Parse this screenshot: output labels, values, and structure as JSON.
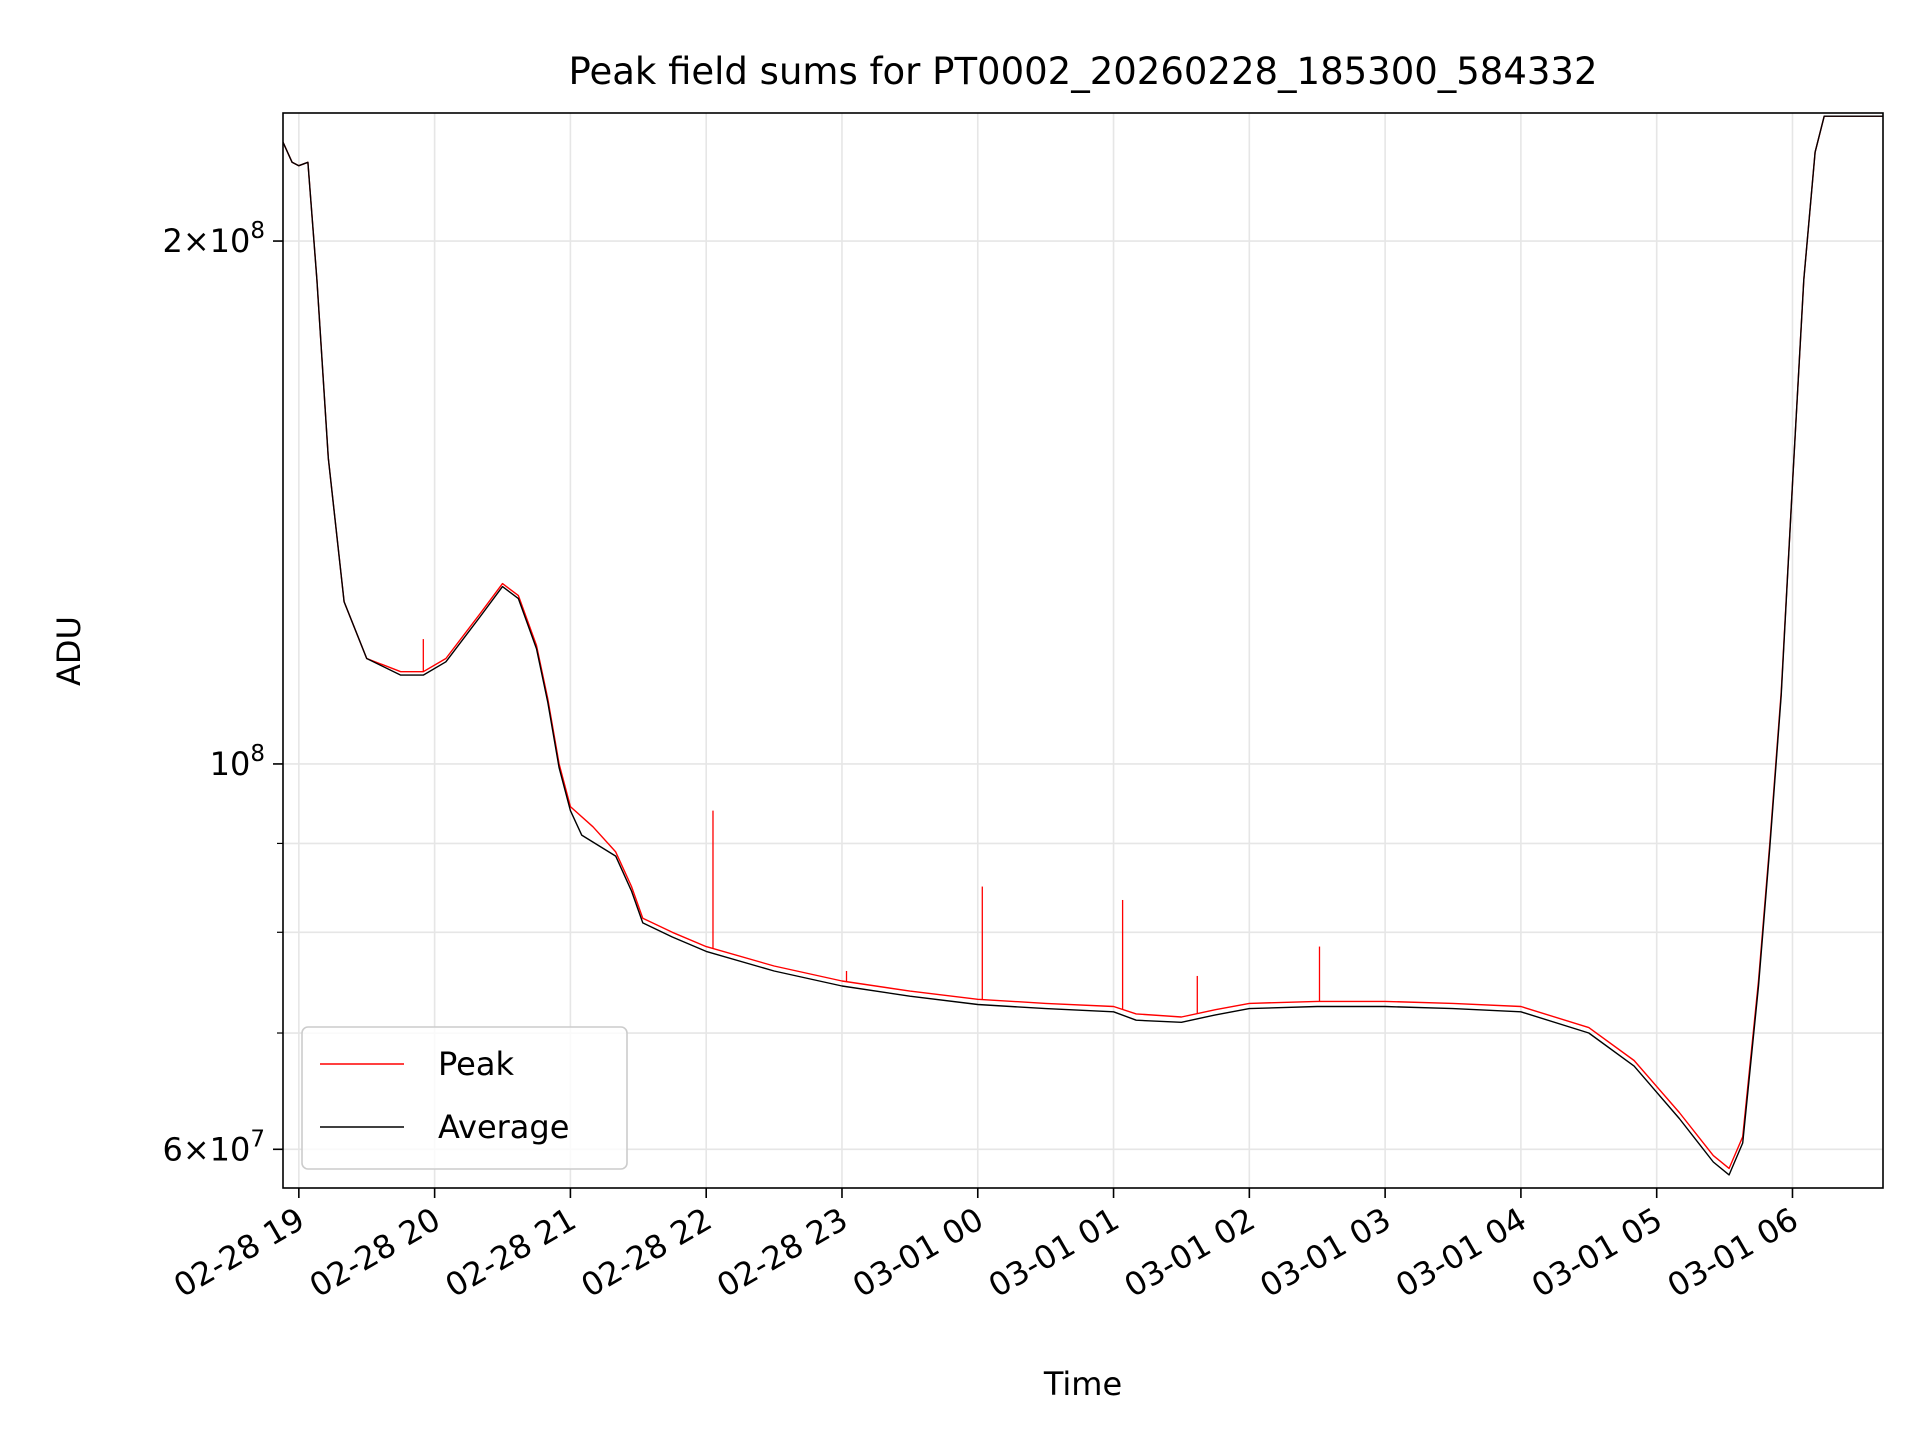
{
  "chart_data": {
    "type": "line",
    "title": "Peak field sums for PT0002_20260228_185300_584332",
    "xlabel": "Time",
    "ylabel": "ADU",
    "y_scale": "log",
    "ylim": [
      57000000,
      237000000
    ],
    "xlim": [
      "2026-02-28 18:53",
      "2026-03-01 06:40"
    ],
    "grid": true,
    "legend_position": "lower-left",
    "x_ticks": [
      {
        "t": "2026-02-28 19:00",
        "label": "02-28 19"
      },
      {
        "t": "2026-02-28 20:00",
        "label": "02-28 20"
      },
      {
        "t": "2026-02-28 21:00",
        "label": "02-28 21"
      },
      {
        "t": "2026-02-28 22:00",
        "label": "02-28 22"
      },
      {
        "t": "2026-02-28 23:00",
        "label": "02-28 23"
      },
      {
        "t": "2026-03-01 00:00",
        "label": "03-01 00"
      },
      {
        "t": "2026-03-01 01:00",
        "label": "03-01 01"
      },
      {
        "t": "2026-03-01 02:00",
        "label": "03-01 02"
      },
      {
        "t": "2026-03-01 03:00",
        "label": "03-01 03"
      },
      {
        "t": "2026-03-01 04:00",
        "label": "03-01 04"
      },
      {
        "t": "2026-03-01 05:00",
        "label": "03-01 05"
      },
      {
        "t": "2026-03-01 06:00",
        "label": "03-01 06"
      }
    ],
    "y_ticks_major": [
      {
        "v": 60000000,
        "base": "6",
        "exp": "7"
      },
      {
        "v": 100000000,
        "base": "",
        "exp": "8"
      },
      {
        "v": 200000000,
        "base": "2",
        "exp": "8"
      }
    ],
    "y_ticks_minor": [
      70000000,
      80000000,
      90000000
    ],
    "series": [
      {
        "name": "Peak",
        "color": "#ff0000",
        "points": [
          [
            "2026-02-28 18:53",
            228000000
          ],
          [
            "2026-02-28 18:57",
            222000000
          ],
          [
            "2026-02-28 19:00",
            221000000
          ],
          [
            "2026-02-28 19:04",
            222000000
          ],
          [
            "2026-02-28 19:08",
            190000000
          ],
          [
            "2026-02-28 19:13",
            150000000
          ],
          [
            "2026-02-28 19:20",
            124000000
          ],
          [
            "2026-02-28 19:30",
            115000000
          ],
          [
            "2026-02-28 19:45",
            113000000
          ],
          [
            "2026-02-28 19:55",
            113000000
          ],
          [
            "2026-02-28 20:05",
            115000000
          ],
          [
            "2026-02-28 20:20",
            122000000
          ],
          [
            "2026-02-28 20:30",
            127000000
          ],
          [
            "2026-02-28 20:37",
            125000000
          ],
          [
            "2026-02-28 20:45",
            117000000
          ],
          [
            "2026-02-28 20:50",
            109000000
          ],
          [
            "2026-02-28 20:55",
            100000000
          ],
          [
            "2026-02-28 21:00",
            94500000
          ],
          [
            "2026-02-28 21:10",
            92000000
          ],
          [
            "2026-02-28 21:20",
            89000000
          ],
          [
            "2026-02-28 21:27",
            85000000
          ],
          [
            "2026-02-28 21:32",
            81500000
          ],
          [
            "2026-02-28 21:45",
            80000000
          ],
          [
            "2026-02-28 22:00",
            78500000
          ],
          [
            "2026-02-28 22:30",
            76500000
          ],
          [
            "2026-02-28 23:00",
            75000000
          ],
          [
            "2026-02-28 23:30",
            74000000
          ],
          [
            "2026-03-01 00:00",
            73200000
          ],
          [
            "2026-03-01 00:30",
            72800000
          ],
          [
            "2026-03-01 01:00",
            72500000
          ],
          [
            "2026-03-01 01:10",
            71800000
          ],
          [
            "2026-03-01 01:30",
            71500000
          ],
          [
            "2026-03-01 01:45",
            72200000
          ],
          [
            "2026-03-01 02:00",
            72800000
          ],
          [
            "2026-03-01 02:30",
            73000000
          ],
          [
            "2026-03-01 03:00",
            73000000
          ],
          [
            "2026-03-01 03:30",
            72800000
          ],
          [
            "2026-03-01 04:00",
            72500000
          ],
          [
            "2026-03-01 04:30",
            70500000
          ],
          [
            "2026-03-01 04:50",
            67500000
          ],
          [
            "2026-03-01 05:10",
            63000000
          ],
          [
            "2026-03-01 05:25",
            59500000
          ],
          [
            "2026-03-01 05:32",
            58500000
          ],
          [
            "2026-03-01 05:38",
            61000000
          ],
          [
            "2026-03-01 05:45",
            75000000
          ],
          [
            "2026-03-01 05:50",
            90000000
          ],
          [
            "2026-03-01 05:55",
            110000000
          ],
          [
            "2026-03-01 06:00",
            145000000
          ],
          [
            "2026-03-01 06:05",
            190000000
          ],
          [
            "2026-03-01 06:10",
            225000000
          ],
          [
            "2026-03-01 06:14",
            236000000
          ],
          [
            "2026-03-01 06:40",
            236000000
          ]
        ],
        "spikes": [
          [
            "2026-02-28 19:55",
            118000000
          ],
          [
            "2026-02-28 22:03",
            94000000
          ],
          [
            "2026-02-28 23:02",
            76000000
          ],
          [
            "2026-03-01 00:02",
            85000000
          ],
          [
            "2026-03-01 01:04",
            83500000
          ],
          [
            "2026-03-01 01:37",
            75500000
          ],
          [
            "2026-03-01 02:31",
            78500000
          ]
        ]
      },
      {
        "name": "Average",
        "color": "#000000",
        "points": [
          [
            "2026-02-28 18:53",
            228000000
          ],
          [
            "2026-02-28 18:57",
            222000000
          ],
          [
            "2026-02-28 19:00",
            221000000
          ],
          [
            "2026-02-28 19:04",
            222000000
          ],
          [
            "2026-02-28 19:08",
            190000000
          ],
          [
            "2026-02-28 19:13",
            150000000
          ],
          [
            "2026-02-28 19:20",
            124000000
          ],
          [
            "2026-02-28 19:30",
            115000000
          ],
          [
            "2026-02-28 19:45",
            112500000
          ],
          [
            "2026-02-28 19:55",
            112500000
          ],
          [
            "2026-02-28 20:05",
            114500000
          ],
          [
            "2026-02-28 20:20",
            121500000
          ],
          [
            "2026-02-28 20:30",
            126500000
          ],
          [
            "2026-02-28 20:37",
            124500000
          ],
          [
            "2026-02-28 20:45",
            116500000
          ],
          [
            "2026-02-28 20:50",
            108500000
          ],
          [
            "2026-02-28 20:55",
            99500000
          ],
          [
            "2026-02-28 21:00",
            94000000
          ],
          [
            "2026-02-28 21:05",
            91000000
          ],
          [
            "2026-02-28 21:20",
            88500000
          ],
          [
            "2026-02-28 21:27",
            84500000
          ],
          [
            "2026-02-28 21:32",
            81000000
          ],
          [
            "2026-02-28 21:45",
            79500000
          ],
          [
            "2026-02-28 22:00",
            78000000
          ],
          [
            "2026-02-28 22:30",
            76000000
          ],
          [
            "2026-02-28 23:00",
            74500000
          ],
          [
            "2026-02-28 23:30",
            73500000
          ],
          [
            "2026-03-01 00:00",
            72700000
          ],
          [
            "2026-03-01 00:30",
            72300000
          ],
          [
            "2026-03-01 01:00",
            72000000
          ],
          [
            "2026-03-01 01:10",
            71200000
          ],
          [
            "2026-03-01 01:30",
            71000000
          ],
          [
            "2026-03-01 01:45",
            71700000
          ],
          [
            "2026-03-01 02:00",
            72300000
          ],
          [
            "2026-03-01 02:30",
            72500000
          ],
          [
            "2026-03-01 03:00",
            72500000
          ],
          [
            "2026-03-01 03:30",
            72300000
          ],
          [
            "2026-03-01 04:00",
            72000000
          ],
          [
            "2026-03-01 04:30",
            70000000
          ],
          [
            "2026-03-01 04:50",
            67000000
          ],
          [
            "2026-03-01 05:10",
            62500000
          ],
          [
            "2026-03-01 05:25",
            59000000
          ],
          [
            "2026-03-01 05:32",
            58000000
          ],
          [
            "2026-03-01 05:38",
            60500000
          ],
          [
            "2026-03-01 05:45",
            74500000
          ],
          [
            "2026-03-01 05:50",
            89500000
          ],
          [
            "2026-03-01 05:55",
            109500000
          ],
          [
            "2026-03-01 06:00",
            145000000
          ],
          [
            "2026-03-01 06:05",
            190000000
          ],
          [
            "2026-03-01 06:10",
            225000000
          ],
          [
            "2026-03-01 06:14",
            236000000
          ],
          [
            "2026-03-01 06:40",
            236000000
          ]
        ]
      }
    ]
  }
}
